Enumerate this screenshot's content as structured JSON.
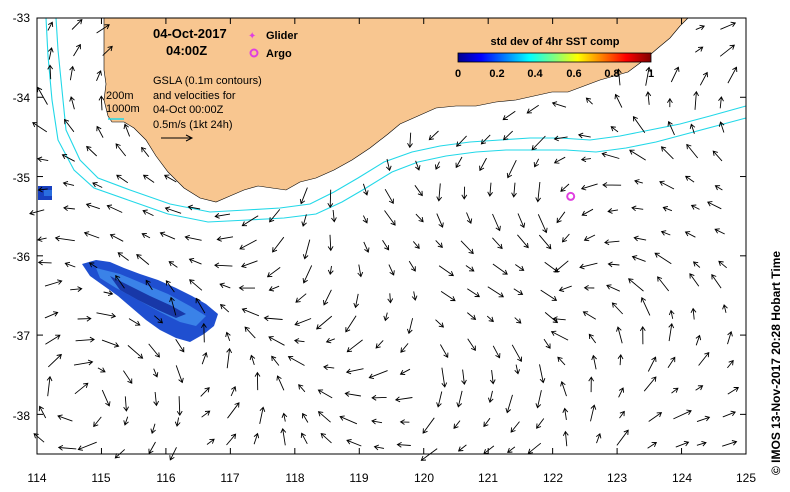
{
  "map": {
    "date_label": "04-Oct-2017",
    "time_label": "04:00Z",
    "legend_glider": "Glider",
    "legend_argo": "Argo",
    "colorbar_title": "std dev of 4hr SST comp",
    "colorbar_ticks": [
      "0",
      "0.2",
      "0.4",
      "0.6",
      "0.8",
      "1"
    ],
    "depth_label_200": "200m",
    "depth_label_1000": "1000m",
    "gsla_line1": "GSLA (0.1m contours)",
    "gsla_line2": "and velocities for",
    "gsla_line3": "04-Oct 00:00Z",
    "gsla_line4": "0.5m/s (1kt 24h)",
    "credit": "© IMOS 13-Nov-2017 20:28 Hobart Time",
    "x_ticks": [
      "114",
      "115",
      "116",
      "117",
      "118",
      "119",
      "120",
      "121",
      "122",
      "123",
      "124",
      "125"
    ],
    "y_ticks": [
      "-33",
      "-34",
      "-35",
      "-36",
      "-37",
      "-38"
    ],
    "lon_range": [
      114,
      125
    ],
    "lat_range": [
      -38.5,
      -33
    ],
    "land_color": "#f8c690",
    "isobath_color": "#22d8e8",
    "argo_color": "#e040e0",
    "argo_position": {
      "lon": 122.28,
      "lat": -35.25
    }
  }
}
